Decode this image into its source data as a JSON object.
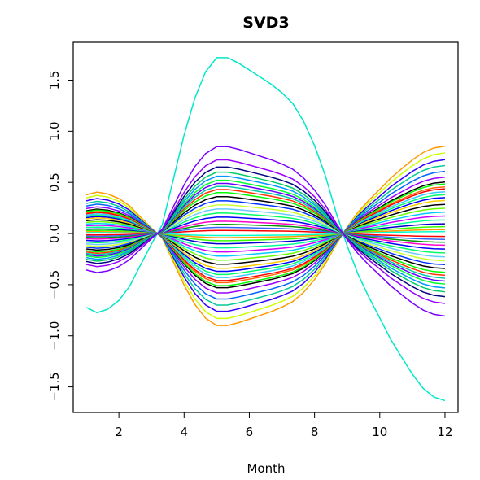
{
  "chart_data": {
    "type": "line",
    "title": "SVD3",
    "xlabel": "Month",
    "ylabel": "",
    "xlim": [
      0.6,
      12.4
    ],
    "ylim": [
      -1.75,
      1.87
    ],
    "xticks": [
      2,
      4,
      6,
      8,
      10,
      12
    ],
    "yticks": [
      -1.5,
      -1.0,
      -0.5,
      0.0,
      0.5,
      1.0,
      1.5
    ],
    "ytick_labels": [
      "−1.5",
      "−1.0",
      "−0.5",
      "0.0",
      "0.5",
      "1.0",
      "1.5"
    ],
    "x": [
      1,
      1.33,
      1.66,
      2,
      2.33,
      2.66,
      3,
      3.33,
      3.66,
      4,
      4.33,
      4.66,
      5,
      5.33,
      5.66,
      6,
      6.33,
      6.66,
      7,
      7.33,
      7.66,
      8,
      8.33,
      8.66,
      9,
      9.33,
      9.66,
      10,
      10.33,
      10.66,
      11,
      11.33,
      11.66,
      12
    ],
    "shape": [
      0.42,
      0.45,
      0.43,
      0.38,
      0.3,
      0.18,
      0.06,
      -0.05,
      -0.3,
      -0.56,
      -0.77,
      -0.92,
      -1.0,
      -1.0,
      -0.97,
      -0.93,
      -0.89,
      -0.85,
      -0.8,
      -0.74,
      -0.64,
      -0.5,
      -0.33,
      -0.12,
      0.07,
      0.23,
      0.36,
      0.48,
      0.6,
      0.7,
      0.8,
      0.88,
      0.93,
      0.95
    ],
    "series": [
      {
        "amplitude": -1.72,
        "color": "#00e8c8"
      },
      {
        "amplitude": 0.9,
        "color": "#ff9900"
      },
      {
        "amplitude": 0.83,
        "color": "#ccff00"
      },
      {
        "amplitude": 0.76,
        "color": "#3300ff"
      },
      {
        "amplitude": 0.7,
        "color": "#00cc99"
      },
      {
        "amplitude": 0.64,
        "color": "#0066ff"
      },
      {
        "amplitude": 0.58,
        "color": "#9900ff"
      },
      {
        "amplitude": 0.53,
        "color": "#000000"
      },
      {
        "amplitude": 0.51,
        "color": "#00ff00"
      },
      {
        "amplitude": 0.48,
        "color": "#ff6600"
      },
      {
        "amplitude": 0.46,
        "color": "#ff0000"
      },
      {
        "amplitude": 0.43,
        "color": "#33ccff"
      },
      {
        "amplitude": 0.4,
        "color": "#00ff66"
      },
      {
        "amplitude": 0.37,
        "color": "#0000ff"
      },
      {
        "amplitude": 0.34,
        "color": "#ffcc00"
      },
      {
        "amplitude": 0.3,
        "color": "#000000"
      },
      {
        "amplitude": 0.26,
        "color": "#66ff00"
      },
      {
        "amplitude": 0.22,
        "color": "#00ccff"
      },
      {
        "amplitude": 0.18,
        "color": "#cc00ff"
      },
      {
        "amplitude": 0.14,
        "color": "#00ff99"
      },
      {
        "amplitude": 0.1,
        "color": "#0000cc"
      },
      {
        "amplitude": 0.07,
        "color": "#33ff00"
      },
      {
        "amplitude": 0.04,
        "color": "#ff9900"
      },
      {
        "amplitude": 0.02,
        "color": "#00ffcc"
      },
      {
        "amplitude": -0.03,
        "color": "#ff0000"
      },
      {
        "amplitude": -0.06,
        "color": "#3366ff"
      },
      {
        "amplitude": -0.09,
        "color": "#009900"
      },
      {
        "amplitude": -0.12,
        "color": "#ff00cc"
      },
      {
        "amplitude": -0.16,
        "color": "#0000ff"
      },
      {
        "amplitude": -0.2,
        "color": "#00ff66"
      },
      {
        "amplitude": -0.24,
        "color": "#66ccff"
      },
      {
        "amplitude": -0.28,
        "color": "#ccff33"
      },
      {
        "amplitude": -0.32,
        "color": "#0033ff"
      },
      {
        "amplitude": -0.36,
        "color": "#000000"
      },
      {
        "amplitude": -0.4,
        "color": "#00ff00"
      },
      {
        "amplitude": -0.43,
        "color": "#ff3300"
      },
      {
        "amplitude": -0.46,
        "color": "#00ccaa"
      },
      {
        "amplitude": -0.49,
        "color": "#6600ff"
      },
      {
        "amplitude": -0.52,
        "color": "#00ff33"
      },
      {
        "amplitude": -0.56,
        "color": "#0099ff"
      },
      {
        "amplitude": -0.6,
        "color": "#00cc66"
      },
      {
        "amplitude": -0.65,
        "color": "#000080"
      },
      {
        "amplitude": -0.72,
        "color": "#9900ff"
      },
      {
        "amplitude": -0.85,
        "color": "#7a00ff"
      }
    ]
  }
}
